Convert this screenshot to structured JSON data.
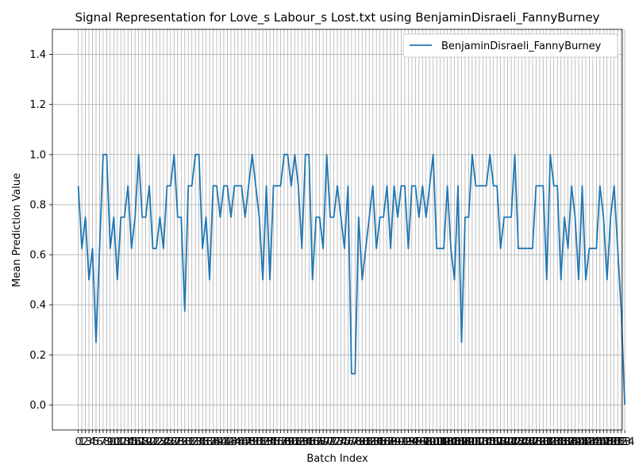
{
  "chart_data": {
    "type": "line",
    "title": "Signal Representation for Love_s Labour_s Lost.txt using BenjaminDisraeli_FannyBurney",
    "xlabel": "Batch Index",
    "ylabel": "Mean Prediction Value",
    "xlim": [
      -7.3,
      153.3
    ],
    "ylim": [
      -0.1,
      1.5
    ],
    "yticks": [
      0.0,
      0.2,
      0.4,
      0.6,
      0.8,
      1.0,
      1.2,
      1.4
    ],
    "grid": true,
    "legend_position": "top-right",
    "series": [
      {
        "name": "BenjaminDisraeli_FannyBurney",
        "color": "#1f77b4",
        "values": [
          0.875,
          0.625,
          0.75,
          0.5,
          0.625,
          0.25,
          0.625,
          1.0,
          1.0,
          0.625,
          0.75,
          0.5,
          0.75,
          0.75,
          0.875,
          0.625,
          0.75,
          1.0,
          0.75,
          0.75,
          0.875,
          0.625,
          0.625,
          0.75,
          0.625,
          0.875,
          0.875,
          1.0,
          0.75,
          0.75,
          0.375,
          0.875,
          0.875,
          1.0,
          1.0,
          0.625,
          0.75,
          0.5,
          0.875,
          0.875,
          0.75,
          0.875,
          0.875,
          0.75,
          0.875,
          0.875,
          0.875,
          0.75,
          0.875,
          1.0,
          0.875,
          0.75,
          0.5,
          0.875,
          0.5,
          0.875,
          0.875,
          0.875,
          1.0,
          1.0,
          0.875,
          1.0,
          0.875,
          0.625,
          1.0,
          1.0,
          0.5,
          0.75,
          0.75,
          0.625,
          1.0,
          0.75,
          0.75,
          0.875,
          0.75,
          0.625,
          0.875,
          0.125,
          0.125,
          0.75,
          0.5,
          0.625,
          0.75,
          0.875,
          0.625,
          0.75,
          0.75,
          0.875,
          0.625,
          0.875,
          0.75,
          0.875,
          0.875,
          0.625,
          0.875,
          0.875,
          0.75,
          0.875,
          0.75,
          0.875,
          1.0,
          0.625,
          0.625,
          0.625,
          0.875,
          0.625,
          0.5,
          0.875,
          0.25,
          0.75,
          0.75,
          1.0,
          0.875,
          0.875,
          0.875,
          0.875,
          1.0,
          0.875,
          0.875,
          0.625,
          0.75,
          0.75,
          0.75,
          1.0,
          0.625,
          0.625,
          0.625,
          0.625,
          0.625,
          0.875,
          0.875,
          0.875,
          0.5,
          1.0,
          0.875,
          0.875,
          0.5,
          0.75,
          0.625,
          0.875,
          0.75,
          0.5,
          0.875,
          0.5,
          0.625,
          0.625,
          0.625,
          0.875,
          0.75,
          0.5,
          0.75,
          0.875,
          0.625,
          0.375,
          0.0
        ]
      }
    ]
  }
}
